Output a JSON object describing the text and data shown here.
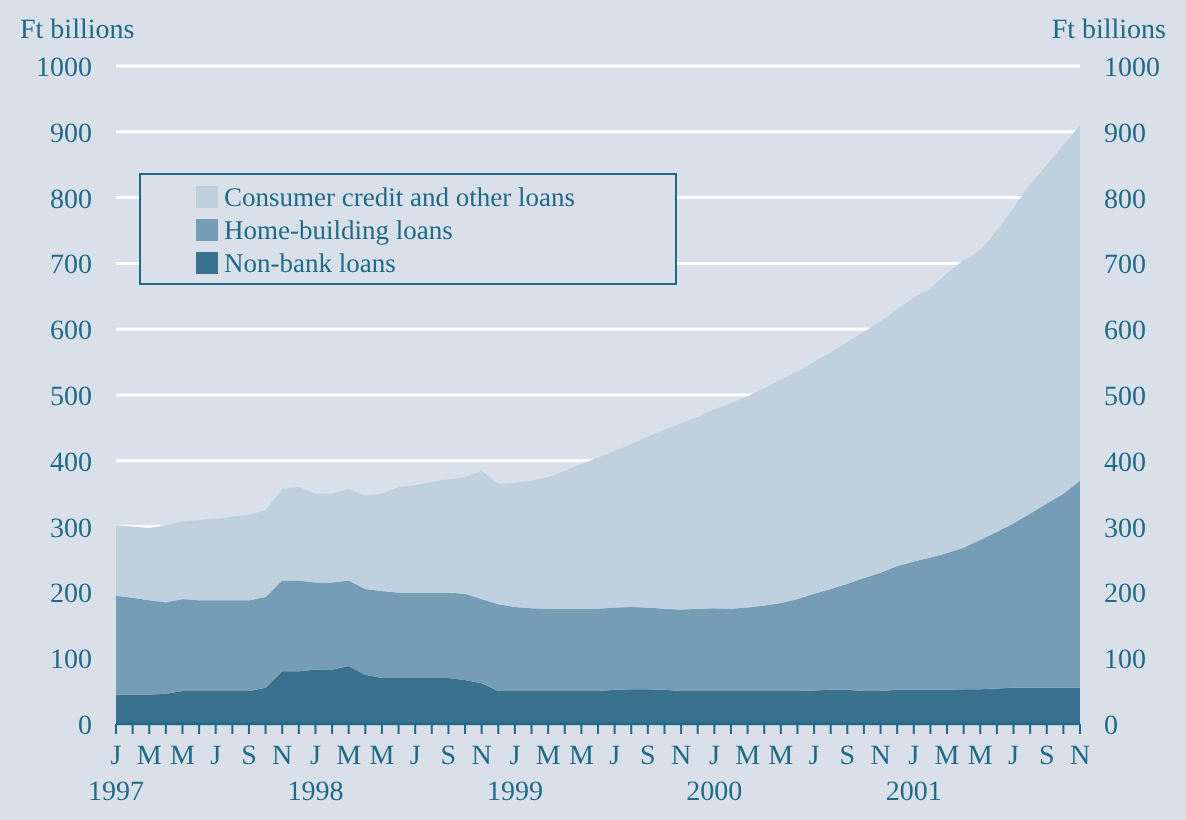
{
  "chart_data": {
    "type": "area",
    "stacked": true,
    "categories": [
      "J\n1997",
      null,
      "M",
      null,
      "M",
      null,
      "J",
      null,
      "S",
      null,
      "N",
      null,
      "J\n1998",
      null,
      "M",
      null,
      "M",
      null,
      "J",
      null,
      "S",
      null,
      "N",
      null,
      "J\n1999",
      null,
      "M",
      null,
      "M",
      null,
      "J",
      null,
      "S",
      null,
      "N",
      null,
      "J\n2000",
      null,
      "M",
      null,
      "M",
      null,
      "J",
      null,
      "S",
      null,
      "N",
      null,
      "J\n2001",
      null,
      "M",
      null,
      "M",
      null,
      "J",
      null,
      "S",
      null,
      "N"
    ],
    "series": [
      {
        "name": "Non-bank loans",
        "color": "#3a718f",
        "values": [
          45,
          45,
          45,
          46,
          50,
          50,
          50,
          50,
          50,
          55,
          80,
          80,
          83,
          83,
          88,
          75,
          70,
          70,
          70,
          70,
          70,
          67,
          62,
          50,
          50,
          50,
          50,
          50,
          50,
          50,
          52,
          53,
          53,
          52,
          50,
          50,
          50,
          50,
          50,
          50,
          50,
          50,
          51,
          52,
          52,
          50,
          50,
          52,
          52,
          52,
          52,
          53,
          53,
          54,
          55,
          55,
          55,
          55,
          55
        ]
      },
      {
        "name": "Home-building loans",
        "color": "#769db6",
        "values": [
          150,
          147,
          143,
          139,
          140,
          138,
          138,
          138,
          138,
          138,
          138,
          138,
          132,
          132,
          130,
          130,
          132,
          130,
          130,
          130,
          130,
          131,
          128,
          132,
          128,
          126,
          125,
          125,
          125,
          125,
          125,
          125,
          124,
          123,
          124,
          125,
          126,
          125,
          127,
          130,
          134,
          140,
          147,
          153,
          161,
          172,
          180,
          188,
          195,
          201,
          208,
          215,
          227,
          238,
          250,
          265,
          280,
          295,
          315
        ]
      },
      {
        "name": "Consumer credit and other loans",
        "color": "#bfd1de",
        "values": [
          107,
          108,
          110,
          117,
          118,
          122,
          124,
          127,
          130,
          132,
          139,
          142,
          135,
          135,
          139,
          142,
          148,
          160,
          163,
          168,
          172,
          177,
          195,
          183,
          189,
          194,
          200,
          210,
          220,
          230,
          238,
          247,
          260,
          272,
          283,
          292,
          302,
          313,
          321,
          330,
          339,
          346,
          352,
          360,
          367,
          374,
          382,
          390,
          401,
          409,
          425,
          437,
          440,
          458,
          480,
          500,
          515,
          530,
          540
        ]
      }
    ],
    "ylabel": "Ft billions",
    "y2label": "Ft billions",
    "ylim": [
      0,
      1000
    ],
    "yticks": [
      0,
      100,
      200,
      300,
      400,
      500,
      600,
      700,
      800,
      900,
      1000
    ],
    "y2lim": [
      0,
      1000
    ],
    "y2ticks": [
      0,
      100,
      200,
      300,
      400,
      500,
      600,
      700,
      800,
      900,
      1000
    ],
    "grid": "y",
    "legend": "top left"
  }
}
